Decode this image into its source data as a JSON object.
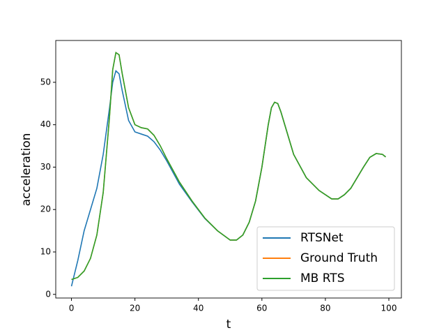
{
  "chart_data": {
    "type": "line",
    "xlabel": "t",
    "ylabel": "acceleration",
    "x": [
      0,
      2,
      4,
      6,
      8,
      10,
      12,
      13,
      14,
      15,
      16,
      18,
      20,
      22,
      24,
      26,
      28,
      30,
      34,
      38,
      42,
      46,
      50,
      52,
      54,
      56,
      58,
      60,
      62,
      63,
      64,
      65,
      66,
      68,
      70,
      74,
      78,
      82,
      84,
      86,
      88,
      90,
      92,
      94,
      96,
      98,
      99
    ],
    "series": [
      {
        "name": "RTSNet",
        "color": "#1f77b4",
        "values": [
          1.9,
          8,
          15,
          20,
          25,
          33,
          44,
          50,
          52.7,
          52,
          48,
          41,
          38.3,
          37.8,
          37.3,
          36,
          34,
          31.5,
          26,
          21.8,
          17.9,
          15,
          12.8,
          12.8,
          14,
          17,
          22,
          30,
          40,
          44,
          45.3,
          45,
          43,
          38,
          33,
          27.5,
          24.5,
          22.5,
          22.5,
          23.5,
          25,
          27.5,
          30,
          32.3,
          33.2,
          33,
          32.4
        ]
      },
      {
        "name": "Ground Truth",
        "color": "#ff7f0e",
        "values": [
          3.5,
          4,
          5.5,
          8.5,
          14,
          24,
          42,
          53,
          57,
          56.5,
          52,
          44,
          40,
          39.3,
          39,
          37.5,
          35,
          32,
          26.5,
          22,
          18,
          15,
          12.8,
          12.8,
          14,
          17,
          22,
          30,
          40,
          44,
          45.3,
          45,
          43,
          38,
          33,
          27.5,
          24.5,
          22.5,
          22.5,
          23.5,
          25,
          27.5,
          30,
          32.3,
          33.2,
          33,
          32.4
        ]
      },
      {
        "name": "MB RTS",
        "color": "#2ca02c",
        "values": [
          3.5,
          4,
          5.5,
          8.5,
          14,
          24,
          42,
          53,
          57,
          56.5,
          52,
          44,
          40,
          39.3,
          39,
          37.5,
          35,
          32,
          26.5,
          22,
          18,
          15,
          12.8,
          12.8,
          14,
          17,
          22,
          30,
          40,
          44,
          45.3,
          45,
          43,
          38,
          33,
          27.5,
          24.5,
          22.5,
          22.5,
          23.5,
          25,
          27.5,
          30,
          32.3,
          33.2,
          33,
          32.4
        ]
      }
    ],
    "xlim": [
      -4.95,
      103.95
    ],
    "xticks": [
      0,
      20,
      40,
      60,
      80,
      100
    ],
    "ylim": [
      -0.86,
      59.86
    ],
    "yticks": [
      0,
      10,
      20,
      30,
      40,
      50
    ],
    "legend": "lower right"
  }
}
